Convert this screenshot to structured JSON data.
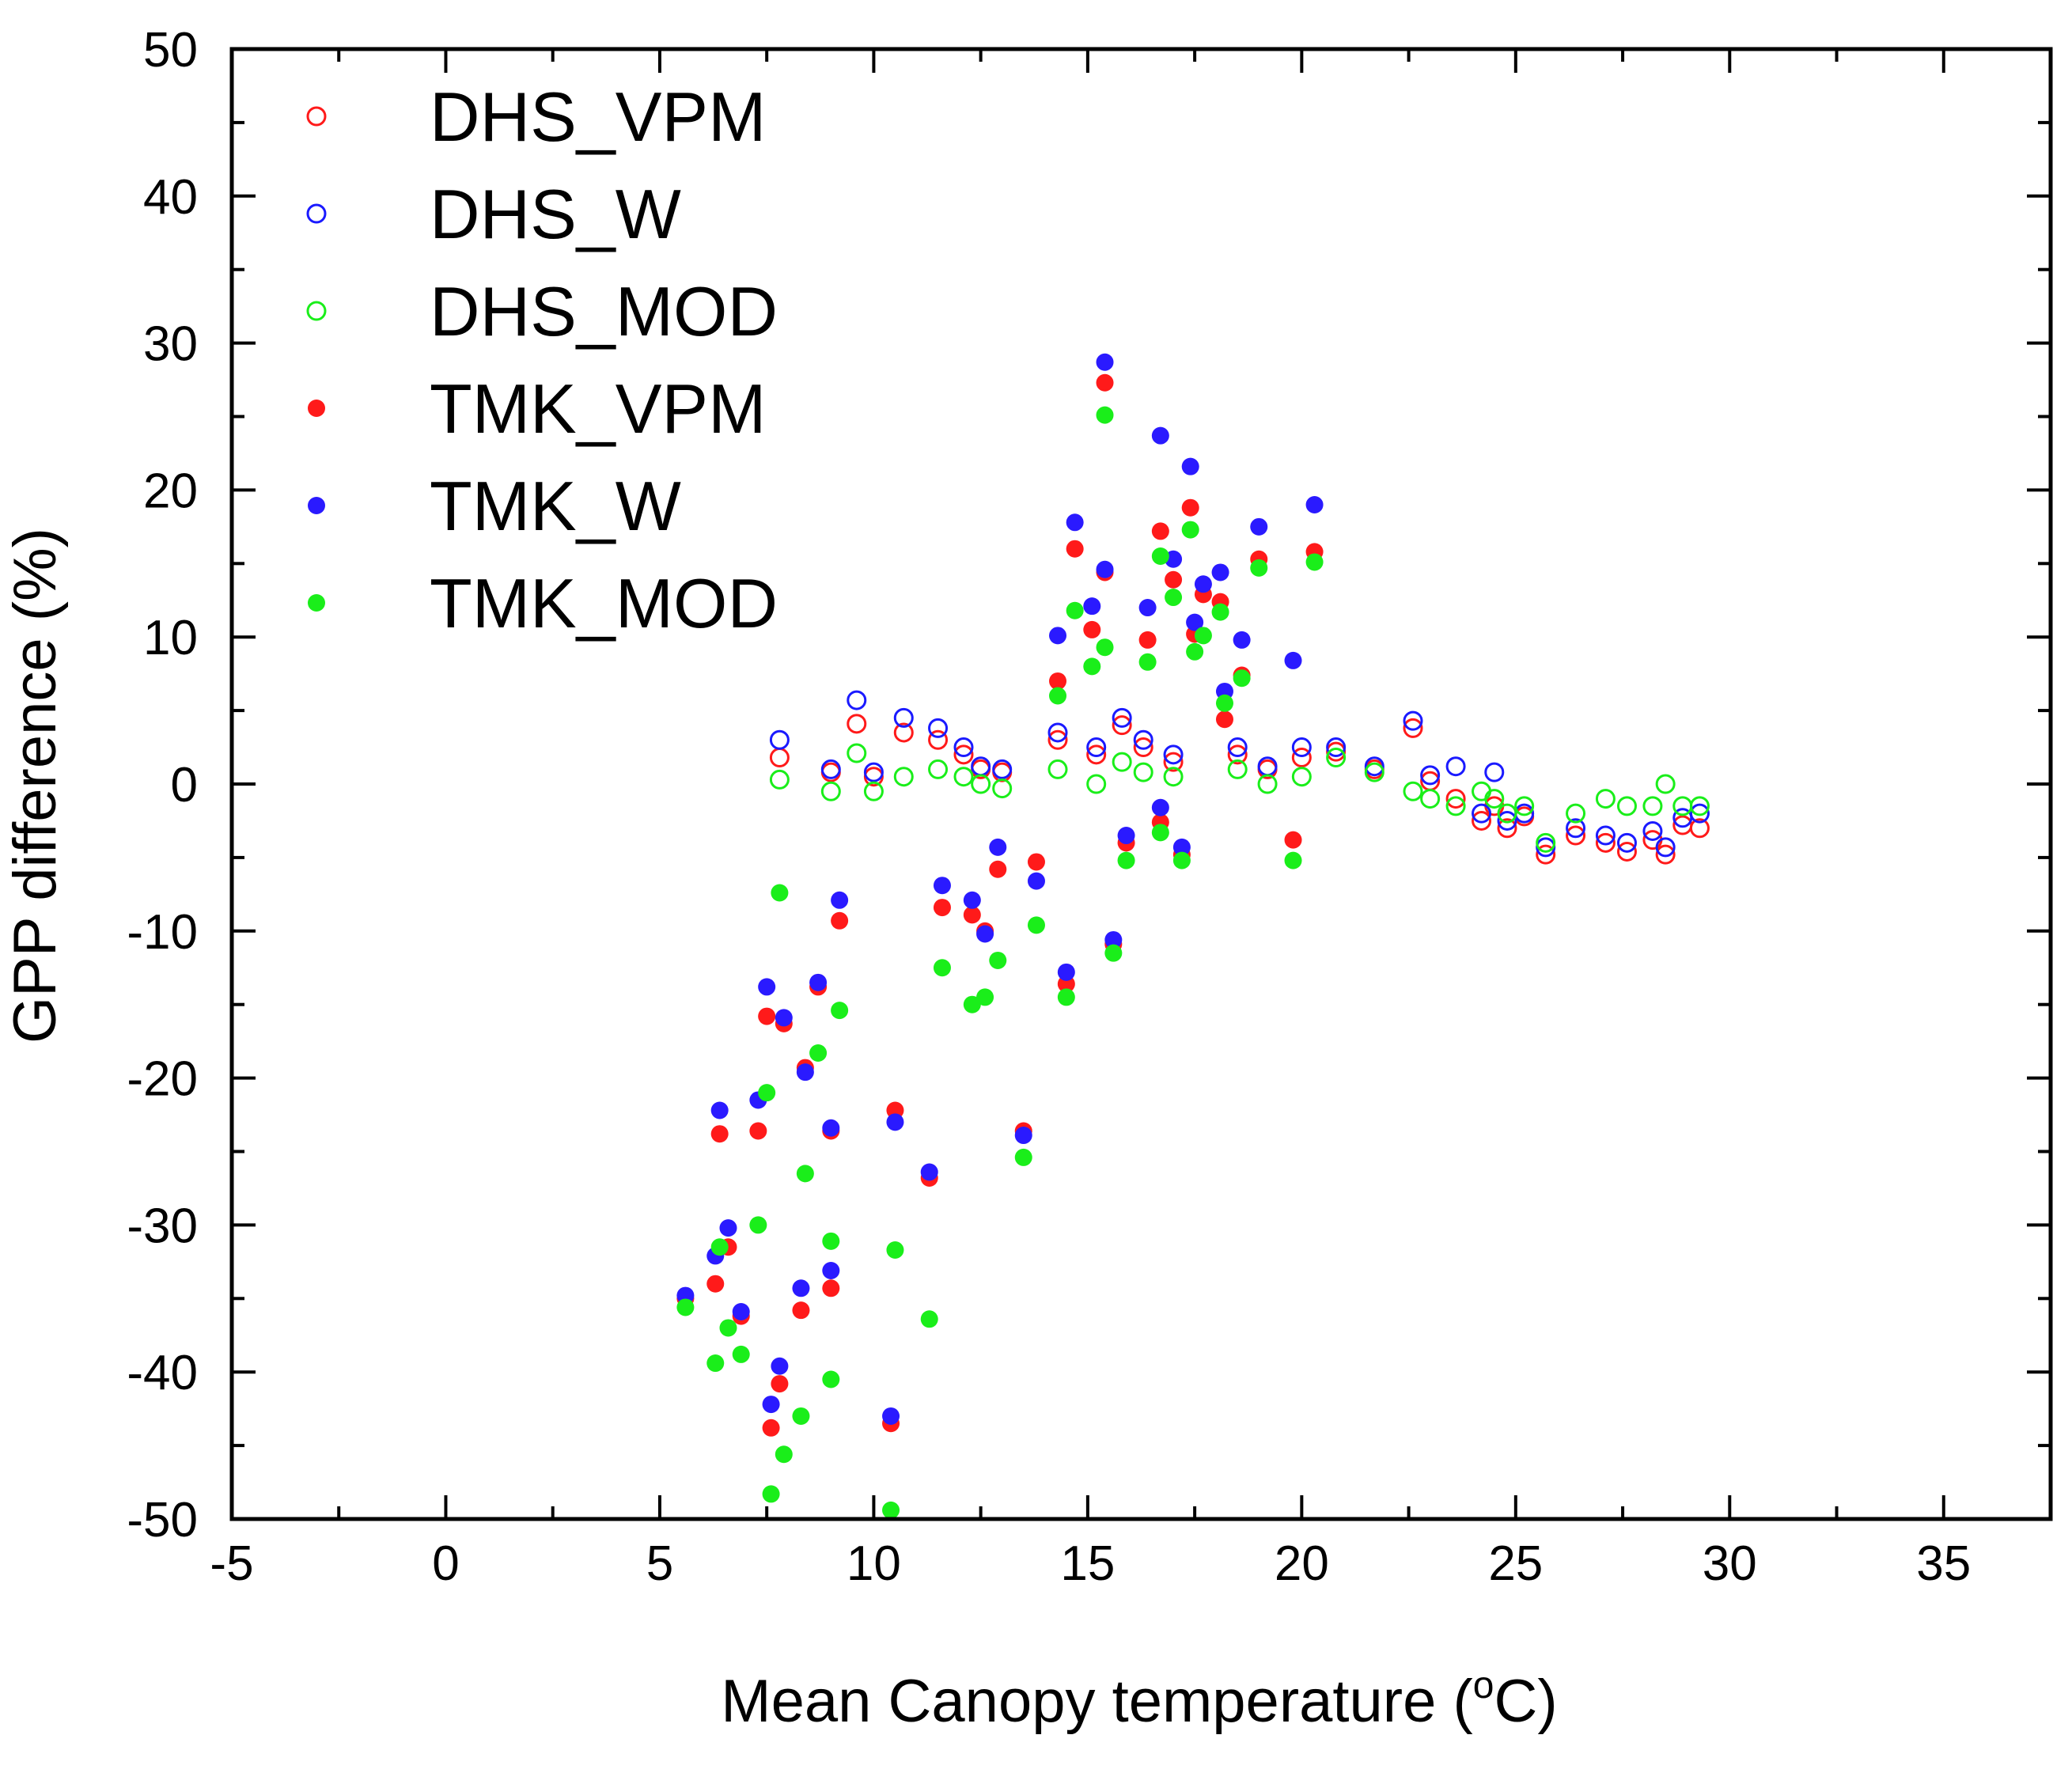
{
  "chart_data": {
    "type": "scatter",
    "title": "",
    "xlabel": "Mean Canopy temperature (",
    "xlabel_superscript": "o",
    "xlabel_suffix": "C)",
    "ylabel": "GPP difference (%)",
    "xlim": [
      -5,
      37.5
    ],
    "ylim": [
      -50,
      50
    ],
    "xticks": [
      -5,
      0,
      5,
      10,
      15,
      20,
      25,
      30,
      35
    ],
    "xtick_labels": [
      "-5",
      "0",
      "5",
      "10",
      "15",
      "20",
      "25",
      "30",
      "35"
    ],
    "yticks": [
      -50,
      -40,
      -30,
      -20,
      -10,
      0,
      10,
      20,
      30,
      40,
      50
    ],
    "ytick_labels": [
      "-50",
      "-40",
      "-30",
      "-20",
      "-10",
      "0",
      "10",
      "20",
      "30",
      "40",
      "50"
    ],
    "grid": false,
    "legend_position": "top-left",
    "series": [
      {
        "name": "DHS_VPM",
        "color": "#ff1a1a",
        "marker": "open-circle",
        "points": [
          [
            7.8,
            1.8
          ],
          [
            9.0,
            0.8
          ],
          [
            9.6,
            4.1
          ],
          [
            10.0,
            0.5
          ],
          [
            10.7,
            3.5
          ],
          [
            11.5,
            3.0
          ],
          [
            12.1,
            2.0
          ],
          [
            12.5,
            1.0
          ],
          [
            13.0,
            0.8
          ],
          [
            14.3,
            3.0
          ],
          [
            15.2,
            2.0
          ],
          [
            15.8,
            4.0
          ],
          [
            16.3,
            2.5
          ],
          [
            17.0,
            1.5
          ],
          [
            18.5,
            2.0
          ],
          [
            19.2,
            1.0
          ],
          [
            20.0,
            1.8
          ],
          [
            20.8,
            2.2
          ],
          [
            21.7,
            1.0
          ],
          [
            22.6,
            3.8
          ],
          [
            23.0,
            0.2
          ],
          [
            23.6,
            -1.0
          ],
          [
            24.2,
            -2.5
          ],
          [
            24.5,
            -1.5
          ],
          [
            24.8,
            -3.0
          ],
          [
            25.2,
            -2.2
          ],
          [
            25.7,
            -4.8
          ],
          [
            26.4,
            -3.5
          ],
          [
            27.1,
            -4.0
          ],
          [
            27.6,
            -4.6
          ],
          [
            28.2,
            -3.8
          ],
          [
            28.5,
            -4.8
          ],
          [
            28.9,
            -2.8
          ],
          [
            29.3,
            -3.0
          ]
        ]
      },
      {
        "name": "DHS_W",
        "color": "#1a1aff",
        "marker": "open-circle",
        "points": [
          [
            7.8,
            3.0
          ],
          [
            9.0,
            1.0
          ],
          [
            9.6,
            5.7
          ],
          [
            10.0,
            0.8
          ],
          [
            10.7,
            4.5
          ],
          [
            11.5,
            3.8
          ],
          [
            12.1,
            2.5
          ],
          [
            12.5,
            1.2
          ],
          [
            13.0,
            1.0
          ],
          [
            14.3,
            3.5
          ],
          [
            15.2,
            2.5
          ],
          [
            15.8,
            4.5
          ],
          [
            16.3,
            3.0
          ],
          [
            17.0,
            2.0
          ],
          [
            18.5,
            2.5
          ],
          [
            19.2,
            1.2
          ],
          [
            20.0,
            2.5
          ],
          [
            20.8,
            2.5
          ],
          [
            21.7,
            1.2
          ],
          [
            22.6,
            4.3
          ],
          [
            23.0,
            0.6
          ],
          [
            23.6,
            1.2
          ],
          [
            24.2,
            -2.0
          ],
          [
            24.5,
            0.8
          ],
          [
            24.8,
            -2.5
          ],
          [
            25.2,
            -2.0
          ],
          [
            25.7,
            -4.3
          ],
          [
            26.4,
            -3.0
          ],
          [
            27.1,
            -3.5
          ],
          [
            27.6,
            -4.0
          ],
          [
            28.2,
            -3.2
          ],
          [
            28.5,
            -4.3
          ],
          [
            28.9,
            -2.3
          ],
          [
            29.3,
            -2.0
          ]
        ]
      },
      {
        "name": "DHS_MOD",
        "color": "#1aee1a",
        "marker": "open-circle",
        "points": [
          [
            7.8,
            0.3
          ],
          [
            9.0,
            -0.5
          ],
          [
            9.6,
            2.1
          ],
          [
            10.0,
            -0.5
          ],
          [
            10.7,
            0.5
          ],
          [
            11.5,
            1.0
          ],
          [
            12.1,
            0.5
          ],
          [
            12.5,
            0.0
          ],
          [
            13.0,
            -0.3
          ],
          [
            14.3,
            1.0
          ],
          [
            15.2,
            0.0
          ],
          [
            15.8,
            1.5
          ],
          [
            16.3,
            0.8
          ],
          [
            17.0,
            0.5
          ],
          [
            18.5,
            1.0
          ],
          [
            19.2,
            0.0
          ],
          [
            20.0,
            0.5
          ],
          [
            20.8,
            1.8
          ],
          [
            21.7,
            0.8
          ],
          [
            22.6,
            -0.5
          ],
          [
            23.0,
            -1.0
          ],
          [
            23.6,
            -1.5
          ],
          [
            24.2,
            -0.5
          ],
          [
            24.5,
            -1.0
          ],
          [
            24.8,
            -2.0
          ],
          [
            25.2,
            -1.5
          ],
          [
            25.7,
            -4.0
          ],
          [
            26.4,
            -2.0
          ],
          [
            27.1,
            -1.0
          ],
          [
            27.6,
            -1.5
          ],
          [
            28.2,
            -1.5
          ],
          [
            28.5,
            0.0
          ],
          [
            28.9,
            -1.5
          ],
          [
            29.3,
            -1.5
          ]
        ]
      },
      {
        "name": "TMK_VPM",
        "color": "#ff1a1a",
        "marker": "filled-circle",
        "points": [
          [
            5.6,
            -35.0
          ],
          [
            6.3,
            -34.0
          ],
          [
            6.4,
            -23.8
          ],
          [
            6.6,
            -31.5
          ],
          [
            6.9,
            -36.2
          ],
          [
            7.3,
            -23.6
          ],
          [
            7.5,
            -15.8
          ],
          [
            7.6,
            -43.8
          ],
          [
            7.8,
            -40.8
          ],
          [
            7.9,
            -16.3
          ],
          [
            8.3,
            -35.8
          ],
          [
            8.4,
            -19.3
          ],
          [
            8.7,
            -13.8
          ],
          [
            9.0,
            -34.3
          ],
          [
            9.0,
            -23.6
          ],
          [
            9.2,
            -9.3
          ],
          [
            10.4,
            -43.5
          ],
          [
            10.5,
            -22.2
          ],
          [
            11.3,
            -26.8
          ],
          [
            11.6,
            -8.4
          ],
          [
            12.3,
            -8.9
          ],
          [
            12.6,
            -10.0
          ],
          [
            12.9,
            -5.8
          ],
          [
            13.5,
            -23.6
          ],
          [
            13.8,
            -5.3
          ],
          [
            14.3,
            7.0
          ],
          [
            14.5,
            -13.6
          ],
          [
            14.7,
            16.0
          ],
          [
            15.1,
            10.5
          ],
          [
            15.4,
            27.3
          ],
          [
            15.4,
            14.4
          ],
          [
            15.6,
            -10.9
          ],
          [
            15.9,
            -4.0
          ],
          [
            16.4,
            9.8
          ],
          [
            16.7,
            17.2
          ],
          [
            16.7,
            -2.6
          ],
          [
            17.0,
            13.9
          ],
          [
            17.2,
            -4.8
          ],
          [
            17.4,
            18.8
          ],
          [
            17.5,
            10.2
          ],
          [
            17.7,
            12.9
          ],
          [
            18.1,
            12.4
          ],
          [
            18.2,
            4.4
          ],
          [
            18.6,
            7.4
          ],
          [
            19.0,
            15.3
          ],
          [
            19.8,
            -3.8
          ],
          [
            20.3,
            15.8
          ]
        ]
      },
      {
        "name": "TMK_W",
        "color": "#2a1aff",
        "marker": "filled-circle",
        "points": [
          [
            5.6,
            -34.8
          ],
          [
            6.3,
            -32.1
          ],
          [
            6.4,
            -22.2
          ],
          [
            6.6,
            -30.2
          ],
          [
            6.9,
            -35.9
          ],
          [
            7.3,
            -21.5
          ],
          [
            7.5,
            -13.8
          ],
          [
            7.6,
            -42.2
          ],
          [
            7.8,
            -39.6
          ],
          [
            7.9,
            -15.9
          ],
          [
            8.3,
            -34.3
          ],
          [
            8.4,
            -19.6
          ],
          [
            8.7,
            -13.5
          ],
          [
            9.0,
            -33.1
          ],
          [
            9.0,
            -23.4
          ],
          [
            9.2,
            -7.9
          ],
          [
            10.4,
            -43.0
          ],
          [
            10.5,
            -23.0
          ],
          [
            11.3,
            -26.4
          ],
          [
            11.6,
            -6.9
          ],
          [
            12.3,
            -7.9
          ],
          [
            12.6,
            -10.2
          ],
          [
            12.9,
            -4.3
          ],
          [
            13.5,
            -23.9
          ],
          [
            13.8,
            -6.6
          ],
          [
            14.3,
            10.1
          ],
          [
            14.5,
            -12.8
          ],
          [
            14.7,
            17.8
          ],
          [
            15.1,
            12.1
          ],
          [
            15.4,
            28.7
          ],
          [
            15.4,
            14.6
          ],
          [
            15.6,
            -10.6
          ],
          [
            15.9,
            -3.5
          ],
          [
            16.4,
            12.0
          ],
          [
            16.7,
            23.7
          ],
          [
            16.7,
            -1.6
          ],
          [
            17.0,
            15.3
          ],
          [
            17.2,
            -4.3
          ],
          [
            17.4,
            21.6
          ],
          [
            17.5,
            11.0
          ],
          [
            17.7,
            13.6
          ],
          [
            18.1,
            14.4
          ],
          [
            18.2,
            6.3
          ],
          [
            18.6,
            9.8
          ],
          [
            19.0,
            17.5
          ],
          [
            19.8,
            8.4
          ],
          [
            20.3,
            19.0
          ]
        ]
      },
      {
        "name": "TMK_MOD",
        "color": "#1aee1a",
        "marker": "filled-circle",
        "points": [
          [
            5.6,
            -35.6
          ],
          [
            6.3,
            -39.4
          ],
          [
            6.4,
            -31.5
          ],
          [
            6.6,
            -37.0
          ],
          [
            6.9,
            -38.8
          ],
          [
            7.3,
            -30.0
          ],
          [
            7.5,
            -21.0
          ],
          [
            7.6,
            -48.3
          ],
          [
            7.8,
            -7.4
          ],
          [
            7.9,
            -45.6
          ],
          [
            8.3,
            -43.0
          ],
          [
            8.4,
            -26.5
          ],
          [
            8.7,
            -18.3
          ],
          [
            9.0,
            -40.5
          ],
          [
            9.0,
            -31.1
          ],
          [
            9.2,
            -15.4
          ],
          [
            10.4,
            -49.4
          ],
          [
            10.5,
            -31.7
          ],
          [
            11.3,
            -36.4
          ],
          [
            11.6,
            -12.5
          ],
          [
            12.3,
            -15.0
          ],
          [
            12.6,
            -14.5
          ],
          [
            12.9,
            -12.0
          ],
          [
            13.5,
            -25.4
          ],
          [
            13.8,
            -9.6
          ],
          [
            14.3,
            6.0
          ],
          [
            14.5,
            -14.5
          ],
          [
            14.7,
            11.8
          ],
          [
            15.1,
            8.0
          ],
          [
            15.4,
            25.1
          ],
          [
            15.4,
            9.3
          ],
          [
            15.6,
            -11.5
          ],
          [
            15.9,
            -5.2
          ],
          [
            16.4,
            8.3
          ],
          [
            16.7,
            15.5
          ],
          [
            16.7,
            -3.3
          ],
          [
            17.0,
            12.7
          ],
          [
            17.2,
            -5.2
          ],
          [
            17.4,
            17.3
          ],
          [
            17.5,
            9.0
          ],
          [
            17.7,
            10.1
          ],
          [
            18.1,
            11.7
          ],
          [
            18.2,
            5.5
          ],
          [
            18.6,
            7.2
          ],
          [
            19.0,
            14.7
          ],
          [
            19.8,
            -5.2
          ],
          [
            20.3,
            15.1
          ]
        ]
      }
    ]
  }
}
